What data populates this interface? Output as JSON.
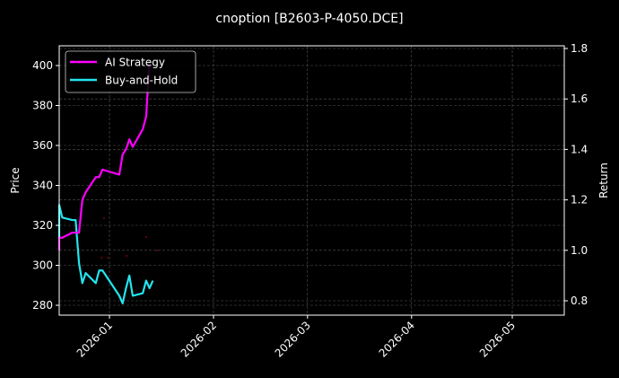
{
  "chart_data": {
    "type": "line",
    "title": "cnoption [B2603-P-4050.DCE]",
    "xlabel": "",
    "ylabel": "Price",
    "ylabel_right": "Return",
    "ylim": [
      274,
      410
    ],
    "ylim_right": [
      0.75,
      1.81
    ],
    "x_ticks": [
      "2026-01",
      "2026-02",
      "2026-03",
      "2026-04",
      "2026-05"
    ],
    "y_ticks": [
      280,
      300,
      320,
      340,
      360,
      380,
      400
    ],
    "y_ticks_right": [
      0.8,
      1.0,
      1.2,
      1.4,
      1.6,
      1.8
    ],
    "grid": true,
    "legend_position": "upper left",
    "series": [
      {
        "name": "AI Strategy",
        "axis": "right",
        "color": "#ff00ff",
        "x": [
          "2025-12-17",
          "2025-12-18",
          "2025-12-19",
          "2025-12-22",
          "2025-12-23",
          "2025-12-24",
          "2025-12-25",
          "2025-12-26",
          "2025-12-29",
          "2025-12-30",
          "2025-12-31",
          "2026-01-05",
          "2026-01-06",
          "2026-01-07",
          "2026-01-08",
          "2026-01-09",
          "2026-01-12",
          "2026-01-13",
          "2026-01-14"
        ],
        "values": [
          1.0,
          1.05,
          1.05,
          1.07,
          1.07,
          1.07,
          1.2,
          1.23,
          1.29,
          1.29,
          1.32,
          1.3,
          1.38,
          1.4,
          1.44,
          1.41,
          1.48,
          1.53,
          1.75
        ]
      },
      {
        "name": "Buy-and-Hold",
        "axis": "right",
        "color": "#22e5ef",
        "x": [
          "2025-12-17",
          "2025-12-18",
          "2025-12-19",
          "2025-12-22",
          "2025-12-23",
          "2025-12-24",
          "2025-12-25",
          "2025-12-26",
          "2025-12-29",
          "2025-12-30",
          "2025-12-31",
          "2026-01-05",
          "2026-01-06",
          "2026-01-07",
          "2026-01-08",
          "2026-01-09",
          "2026-01-12",
          "2026-01-13",
          "2026-01-14",
          "2026-01-15"
        ],
        "values": [
          1.05,
          1.18,
          1.13,
          1.12,
          1.12,
          0.95,
          0.87,
          0.91,
          0.87,
          0.92,
          0.92,
          0.82,
          0.79,
          0.85,
          0.9,
          0.82,
          0.83,
          0.88,
          0.85,
          0.88
        ]
      }
    ]
  }
}
